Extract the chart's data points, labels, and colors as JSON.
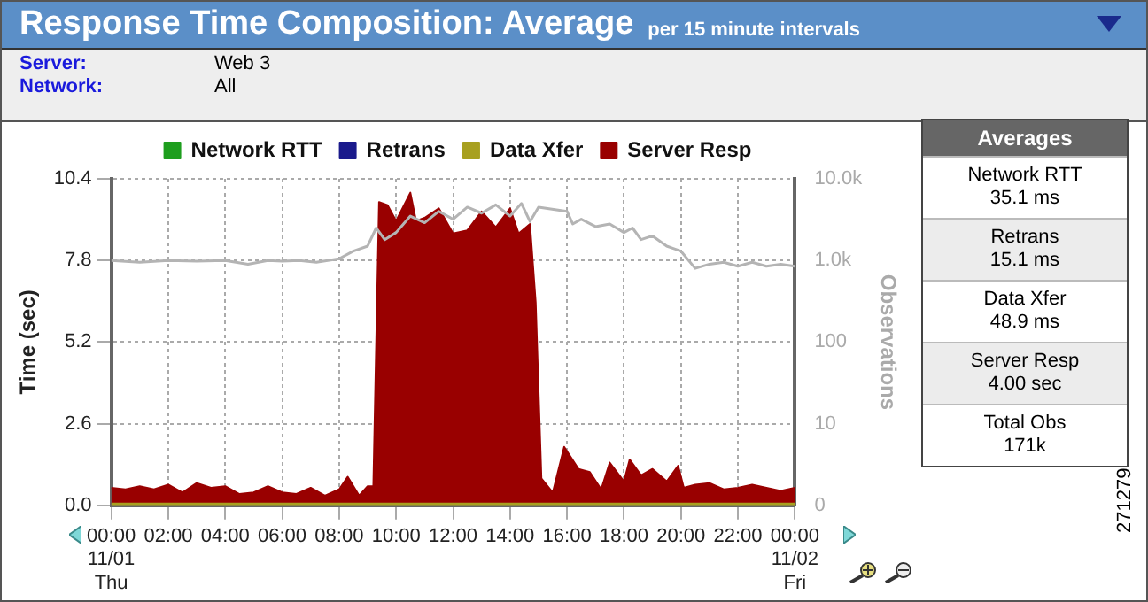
{
  "chart_data": [
    {
      "type": "area",
      "title": "Response Time Composition: Average",
      "subtitle": "per 15 minute intervals",
      "annotations": [
        "Server:",
        "Web 3",
        "Network:",
        "All",
        "271279"
      ],
      "ylabel": "Time (sec)",
      "y2label": "Observations",
      "x": [
        0,
        0.5,
        1,
        1.5,
        2,
        2.5,
        3,
        3.5,
        4,
        4.5,
        5,
        5.5,
        6,
        6.5,
        7,
        7.5,
        8,
        8.3,
        8.7,
        9,
        9.2,
        9.4,
        9.7,
        10,
        10.5,
        10.7,
        11,
        11.5,
        12,
        12.5,
        13,
        13.5,
        14,
        14.3,
        14.7,
        14.9,
        15.1,
        15.5,
        15.9,
        16.4,
        16.8,
        17.2,
        17.5,
        18,
        18.2,
        18.6,
        19,
        19.5,
        19.9,
        20.1,
        20.5,
        21,
        21.5,
        22,
        22.5,
        23,
        23.5,
        24
      ],
      "stacked": true,
      "legend": "top",
      "grid": true,
      "marker": "none",
      "line_style": "solid",
      "log": "y2",
      "xlim": [
        0,
        24
      ],
      "xticks": [
        {
          "value": 0,
          "label": "00:00\n11/01\nThu"
        },
        {
          "value": 2,
          "label": "02:00"
        },
        {
          "value": 4,
          "label": "04:00"
        },
        {
          "value": 6,
          "label": "06:00"
        },
        {
          "value": 8,
          "label": "08:00"
        },
        {
          "value": 10,
          "label": "10:00"
        },
        {
          "value": 12,
          "label": "12:00"
        },
        {
          "value": 14,
          "label": "14:00"
        },
        {
          "value": 16,
          "label": "16:00"
        },
        {
          "value": 18,
          "label": "18:00"
        },
        {
          "value": 20,
          "label": "20:00"
        },
        {
          "value": 22,
          "label": "22:00"
        },
        {
          "value": 24,
          "label": "00:00\n11/02\nFri"
        }
      ],
      "ylim": [
        0,
        10.4
      ],
      "yticks": [
        {
          "value": 0,
          "label": "0.0"
        },
        2.6,
        5.2,
        7.8,
        10.4
      ],
      "y2lim": [
        0,
        10000
      ],
      "y2ticks": [
        0,
        10,
        100,
        {
          "value": 1000,
          "label": "1.0k"
        },
        {
          "value": 10000,
          "label": "10.0k"
        }
      ],
      "series": [
        {
          "name": "Network RTT",
          "color": "#1e9e1e",
          "values": [
            null,
            null,
            null,
            null,
            null,
            null,
            null,
            null,
            null,
            null,
            null,
            null,
            null,
            null,
            null,
            null,
            null,
            null,
            null,
            null,
            null,
            null,
            null,
            null,
            null,
            null,
            null,
            null,
            null,
            null,
            null,
            null,
            null,
            null,
            null,
            null,
            null,
            null,
            null,
            null,
            null,
            null,
            null,
            null,
            null,
            null,
            null,
            null,
            null,
            null,
            null,
            null,
            null,
            null,
            null,
            null,
            null,
            null
          ]
        },
        {
          "name": "Retrans",
          "color": "#1a1a8c",
          "values": [
            null,
            null,
            null,
            null,
            null,
            null,
            null,
            null,
            null,
            null,
            null,
            null,
            null,
            null,
            null,
            null,
            null,
            null,
            null,
            null,
            null,
            null,
            null,
            null,
            null,
            null,
            null,
            null,
            null,
            null,
            null,
            null,
            null,
            null,
            null,
            null,
            null,
            null,
            null,
            null,
            null,
            null,
            null,
            null,
            null,
            null,
            null,
            null,
            null,
            null,
            null,
            null,
            null,
            null,
            null,
            null,
            null,
            null
          ]
        },
        {
          "name": "Data Xfer",
          "color": "#a8a020",
          "values": [
            0.06,
            0.06,
            0.06,
            0.06,
            0.06,
            0.06,
            0.06,
            0.06,
            0.06,
            0.06,
            0.06,
            0.06,
            0.06,
            0.06,
            0.06,
            0.06,
            0.06,
            0.06,
            0.06,
            0.06,
            0.06,
            0.06,
            0.06,
            0.06,
            0.06,
            0.06,
            0.06,
            0.06,
            0.06,
            0.06,
            0.06,
            0.06,
            0.06,
            0.06,
            0.06,
            0.06,
            0.06,
            0.06,
            0.06,
            0.06,
            0.06,
            0.06,
            0.06,
            0.06,
            0.06,
            0.06,
            0.06,
            0.06,
            0.06,
            0.06,
            0.06,
            0.06,
            0.06,
            0.06,
            0.06,
            0.06,
            0.06,
            0.06
          ]
        },
        {
          "name": "Server Resp",
          "color": "#990000",
          "values": [
            0.5,
            0.45,
            0.55,
            0.45,
            0.6,
            0.35,
            0.65,
            0.5,
            0.55,
            0.3,
            0.35,
            0.55,
            0.35,
            0.3,
            0.5,
            0.25,
            0.45,
            0.85,
            0.25,
            0.55,
            0.55,
            9.6,
            9.5,
            9.0,
            9.9,
            9.0,
            9.1,
            9.4,
            8.6,
            8.7,
            9.3,
            8.8,
            9.4,
            8.6,
            8.9,
            6.4,
            0.8,
            0.35,
            1.8,
            1.1,
            1.0,
            0.45,
            1.3,
            0.7,
            1.4,
            0.9,
            1.1,
            0.7,
            1.2,
            0.5,
            0.6,
            0.65,
            0.45,
            0.5,
            0.6,
            0.5,
            0.4,
            0.5
          ]
        },
        {
          "type": "line",
          "axis": "y2",
          "color": "#b4b4b4",
          "x": [
            0,
            1,
            2,
            3,
            4,
            4.8,
            5.5,
            6,
            6.6,
            7.2,
            8,
            8.5,
            9,
            9.3,
            9.6,
            10,
            10.5,
            11,
            11.5,
            12,
            12.5,
            13,
            13.5,
            14,
            14.4,
            14.7,
            15,
            16,
            16.2,
            16.5,
            17,
            17.5,
            18,
            18.3,
            18.6,
            19,
            19.5,
            20,
            20.5,
            21,
            21.5,
            22,
            22.5,
            23,
            23.5,
            24
          ],
          "values": [
            1000,
            950,
            1000,
            980,
            1000,
            900,
            1000,
            980,
            1000,
            950,
            1050,
            1300,
            1500,
            2500,
            1800,
            2200,
            3500,
            2900,
            4000,
            3200,
            4500,
            3800,
            4800,
            3500,
            5000,
            3000,
            4500,
            4000,
            2800,
            3200,
            2600,
            2800,
            2200,
            2500,
            1800,
            2000,
            1500,
            1300,
            800,
            900,
            950,
            850,
            950,
            850,
            900,
            850
          ]
        }
      ]
    },
    {
      "type": "other",
      "title": "Averages",
      "annotations": [
        "Network RTT",
        "35.1 ms",
        "Retrans",
        "15.1 ms",
        "Data Xfer",
        "48.9 ms",
        "Server Resp",
        "4.00 sec",
        "Total Obs",
        "171k"
      ]
    }
  ]
}
